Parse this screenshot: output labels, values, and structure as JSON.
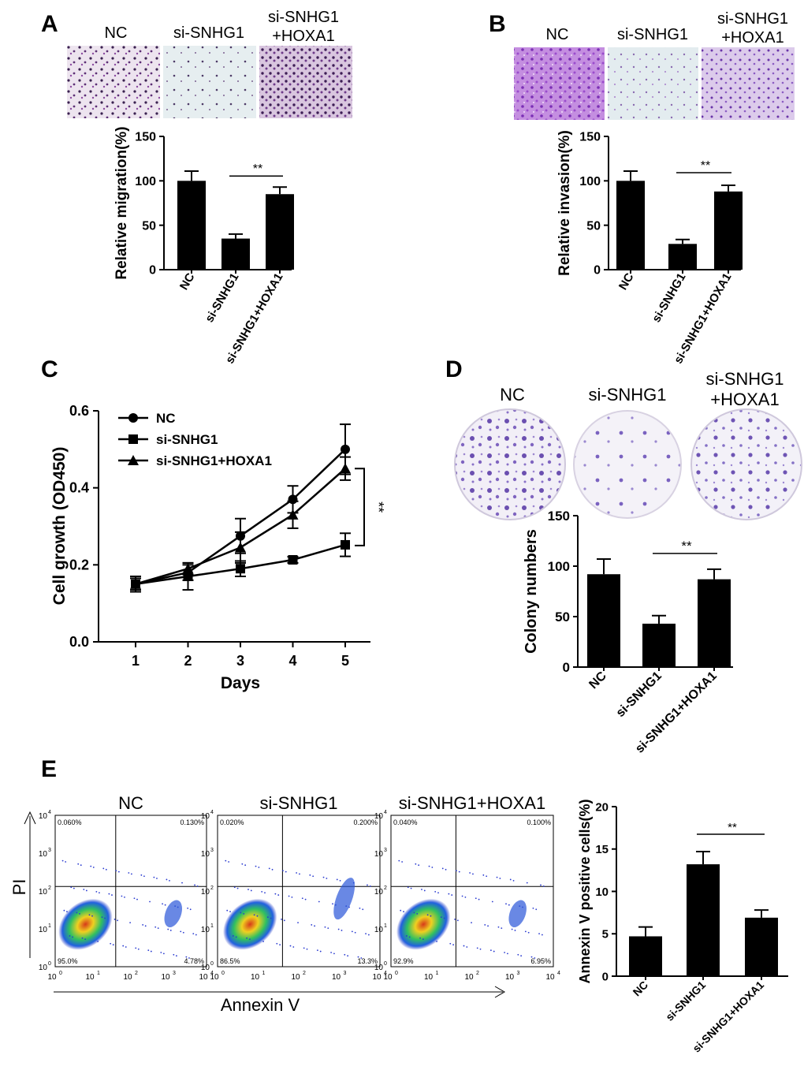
{
  "panels": {
    "A": {
      "letter": "A",
      "image_labels": [
        "NC",
        "si-SNHG1",
        "si-SNHG1",
        "+HOXA1"
      ]
    },
    "B": {
      "letter": "B",
      "image_labels": [
        "NC",
        "si-SNHG1",
        "si-SNHG1",
        "+HOXA1"
      ]
    },
    "C": {
      "letter": "C"
    },
    "D": {
      "letter": "D",
      "image_labels": [
        "NC",
        "si-SNHG1",
        "si-SNHG1",
        "+HOXA1"
      ]
    },
    "E": {
      "letter": "E",
      "flow_titles": [
        "NC",
        "si-SNHG1",
        "si-SNHG1+HOXA1"
      ],
      "quadrant_percentages": [
        {
          "ul": "0.060%",
          "ur": "0.130%",
          "ll": "95.0%",
          "lr": "4.78%"
        },
        {
          "ul": "0.020%",
          "ur": "0.200%",
          "ll": "86.5%",
          "lr": "13.3%"
        },
        {
          "ul": "0.040%",
          "ur": "0.100%",
          "ll": "92.9%",
          "lr": "6.95%"
        }
      ],
      "flow_xlabel": "Annexin V",
      "flow_ylabel": "PI",
      "flow_ticks": [
        "10",
        "0",
        "1",
        "2",
        "3",
        "4"
      ]
    }
  },
  "chart_data": [
    {
      "id": "A",
      "type": "bar",
      "categories": [
        "NC",
        "si-SNHG1",
        "si-SNHG1+HOXA1"
      ],
      "values": [
        100,
        35,
        85
      ],
      "errors": [
        11,
        5,
        8
      ],
      "ylabel": "Relative migration(%)",
      "ylim": [
        0,
        150
      ],
      "yticks": [
        0,
        50,
        100,
        150
      ],
      "significance": {
        "from": 1,
        "to": 2,
        "label": "**"
      }
    },
    {
      "id": "B",
      "type": "bar",
      "categories": [
        "NC",
        "si-SNHG1",
        "si-SNHG1+HOXA1"
      ],
      "values": [
        100,
        29,
        88
      ],
      "errors": [
        11,
        5,
        7
      ],
      "ylabel": "Relative invasion(%)",
      "ylim": [
        0,
        150
      ],
      "yticks": [
        0,
        50,
        100,
        150
      ],
      "significance": {
        "from": 1,
        "to": 2,
        "label": "**"
      }
    },
    {
      "id": "C",
      "type": "line",
      "x": [
        1,
        2,
        3,
        4,
        5
      ],
      "series": [
        {
          "name": "NC",
          "marker": "circle",
          "values": [
            0.15,
            0.18,
            0.275,
            0.37,
            0.5
          ],
          "errors": [
            0.02,
            0.02,
            0.045,
            0.035,
            0.065
          ]
        },
        {
          "name": "si-SNHG1",
          "marker": "square",
          "values": [
            0.15,
            0.17,
            0.19,
            0.213,
            0.252
          ],
          "errors": [
            0.015,
            0.035,
            0.02,
            0.008,
            0.03
          ]
        },
        {
          "name": "si-SNHG1+HOXA1",
          "marker": "triangle",
          "values": [
            0.15,
            0.19,
            0.245,
            0.33,
            0.45
          ],
          "errors": [
            0.02,
            0.015,
            0.04,
            0.035,
            0.03
          ]
        }
      ],
      "xlabel": "Days",
      "ylabel": "Cell growth (OD450)",
      "xticks": [
        1,
        2,
        3,
        4,
        5
      ],
      "ylim": [
        0.0,
        0.6
      ],
      "yticks": [
        "0.0",
        "0.2",
        "0.4",
        "0.6"
      ],
      "significance": {
        "label": "**"
      }
    },
    {
      "id": "D",
      "type": "bar",
      "categories": [
        "NC",
        "si-SNHG1",
        "si-SNHG1+HOXA1"
      ],
      "values": [
        92,
        43,
        87
      ],
      "errors": [
        15,
        8,
        10
      ],
      "ylabel": "Colony numbers",
      "ylim": [
        0,
        150
      ],
      "yticks": [
        0,
        50,
        100,
        150
      ],
      "significance": {
        "from": 1,
        "to": 2,
        "label": "**"
      }
    },
    {
      "id": "E",
      "type": "bar",
      "categories": [
        "NC",
        "si-SNHG1",
        "si-SNHG1+HOXA1"
      ],
      "values": [
        4.7,
        13.2,
        6.9
      ],
      "errors": [
        1.1,
        1.5,
        0.9
      ],
      "ylabel": "Annexin V positive cells(%)",
      "ylim": [
        0,
        20
      ],
      "yticks": [
        0,
        5,
        10,
        15,
        20
      ],
      "significance": {
        "from": 1,
        "to": 2,
        "label": "**"
      }
    }
  ]
}
